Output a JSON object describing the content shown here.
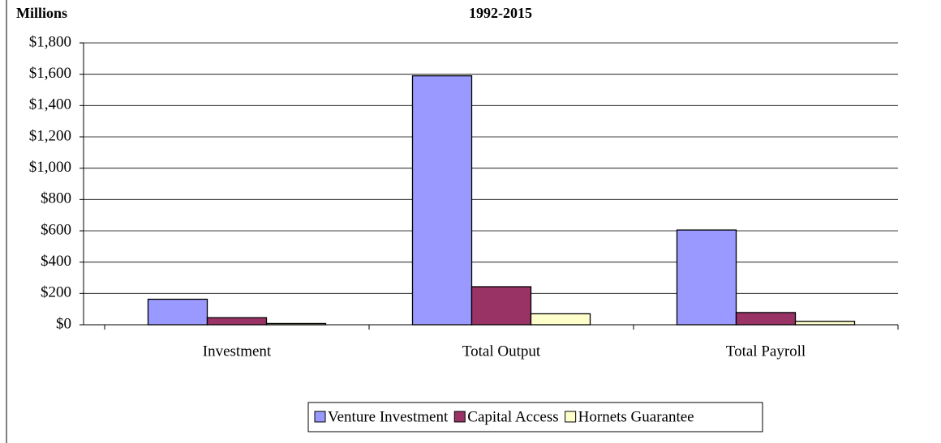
{
  "chart_data": {
    "type": "bar",
    "title": "1992-2015",
    "y_label": "Millions",
    "categories": [
      "Investment",
      "Total Output",
      "Total Payroll"
    ],
    "series": [
      {
        "name": "Venture Investment",
        "color": "#9999ff",
        "values": [
          163,
          1590,
          605
        ]
      },
      {
        "name": "Capital Access",
        "color": "#993366",
        "values": [
          45,
          243,
          78
        ]
      },
      {
        "name": "Hornets Guarantee",
        "color": "#ffffcc",
        "values": [
          8,
          70,
          22
        ]
      }
    ],
    "ylim": [
      0,
      1800
    ],
    "yticks": [
      {
        "value": 0,
        "label": "$0"
      },
      {
        "value": 200,
        "label": "$200"
      },
      {
        "value": 400,
        "label": "$400"
      },
      {
        "value": 600,
        "label": "$600"
      },
      {
        "value": 800,
        "label": "$800"
      },
      {
        "value": 1000,
        "label": "$1,000"
      },
      {
        "value": 1200,
        "label": "$1,200"
      },
      {
        "value": 1400,
        "label": "$1,400"
      },
      {
        "value": 1600,
        "label": "$1,600"
      },
      {
        "value": 1800,
        "label": "$1,800"
      }
    ],
    "grid": true,
    "legend": "bottom"
  }
}
